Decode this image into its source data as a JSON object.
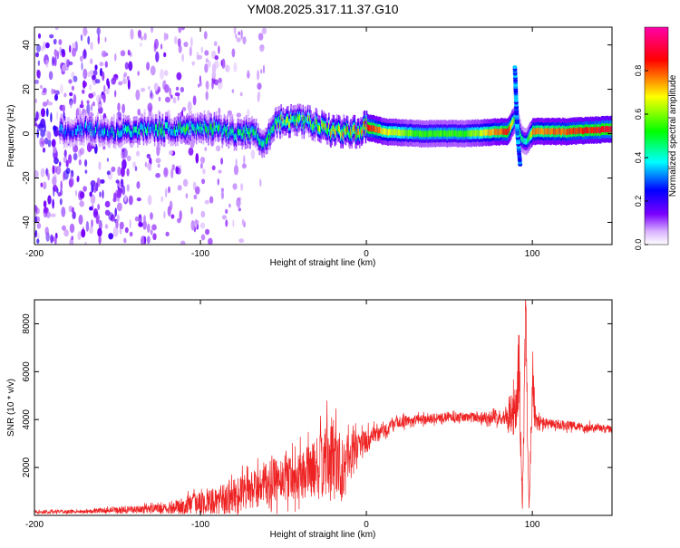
{
  "figure_title": "YM08.2025.317.11.37.G10",
  "chart_data": [
    {
      "type": "heatmap",
      "title": "YM08.2025.317.11.37.G10",
      "xlabel": "Height of straight line (km)",
      "ylabel": "Frequency (Hz)",
      "xlim": [
        -200,
        148
      ],
      "ylim": [
        -50,
        48
      ],
      "xticks": [
        -200,
        -100,
        0,
        100
      ],
      "yticks": [
        -40,
        -20,
        0,
        20,
        40
      ],
      "colorbar": {
        "label": "Normalized spectral amplitude",
        "range": [
          0,
          1
        ],
        "ticks": [
          "0.0",
          "0.2",
          "0.4",
          "0.6",
          "0.8"
        ],
        "tick_values": [
          0,
          0.2,
          0.4,
          0.6,
          0.8
        ],
        "colors": [
          "#ffffff",
          "#7b00ff",
          "#0000ff",
          "#00ffff",
          "#00ff00",
          "#ffff00",
          "#ff0000",
          "#ff00ff"
        ]
      },
      "dominant_ridge": {
        "x": [
          -185,
          -170,
          -150,
          -130,
          -110,
          -100,
          -90,
          -80,
          -70,
          -62,
          -55,
          -45,
          -35,
          -25,
          -15,
          -5,
          0,
          10,
          30,
          60,
          85,
          90,
          93,
          96,
          100,
          120,
          148
        ],
        "y": [
          1,
          2,
          1,
          2,
          2,
          3,
          2,
          0,
          1,
          -4,
          5,
          6,
          5,
          2,
          1,
          1,
          3,
          1,
          0,
          0,
          1,
          8,
          -2,
          -4,
          1,
          1,
          2
        ],
        "amplitude": [
          0.3,
          0.35,
          0.4,
          0.45,
          0.5,
          0.45,
          0.5,
          0.45,
          0.5,
          0.4,
          0.55,
          0.6,
          0.55,
          0.65,
          0.7,
          0.75,
          0.9,
          0.7,
          0.55,
          0.55,
          0.85,
          0.5,
          0.45,
          0.4,
          0.75,
          0.8,
          0.9
        ]
      },
      "noise_region_xlim": [
        -200,
        -60
      ],
      "noise_region_ylim": [
        -50,
        48
      ]
    },
    {
      "type": "line",
      "title": "",
      "xlabel": "Height of straight line (km)",
      "ylabel": "SNR (10 * v/v)",
      "xlim": [
        -200,
        148
      ],
      "ylim": [
        0,
        9000
      ],
      "xticks": [
        -200,
        -100,
        0,
        100
      ],
      "yticks": [
        2000,
        4000,
        6000,
        8000
      ],
      "series": [
        {
          "name": "SNR",
          "color": "#ee2222",
          "x": [
            -200,
            -180,
            -160,
            -140,
            -120,
            -110,
            -100,
            -90,
            -80,
            -70,
            -60,
            -50,
            -40,
            -30,
            -25,
            -20,
            -15,
            -10,
            -5,
            0,
            5,
            10,
            20,
            30,
            40,
            50,
            60,
            70,
            80,
            85,
            90,
            92,
            94,
            96,
            98,
            100,
            102,
            110,
            120,
            130,
            140,
            148
          ],
          "y": [
            150,
            150,
            200,
            250,
            300,
            400,
            500,
            600,
            800,
            1000,
            1300,
            1600,
            1700,
            2000,
            2200,
            2500,
            2000,
            2600,
            3000,
            3100,
            3300,
            3500,
            3900,
            4000,
            4050,
            4100,
            4100,
            4100,
            4100,
            4200,
            4300,
            6000,
            300,
            8500,
            200,
            5500,
            3900,
            3800,
            3750,
            3700,
            3650,
            3600
          ],
          "spread": [
            80,
            80,
            100,
            150,
            200,
            400,
            500,
            600,
            700,
            800,
            900,
            1000,
            1000,
            1200,
            1500,
            1800,
            1500,
            900,
            600,
            500,
            400,
            300,
            250,
            200,
            200,
            200,
            200,
            250,
            300,
            400,
            1200,
            1500,
            100,
            1500,
            100,
            1500,
            400,
            200,
            200,
            200,
            150,
            150
          ]
        }
      ]
    }
  ]
}
